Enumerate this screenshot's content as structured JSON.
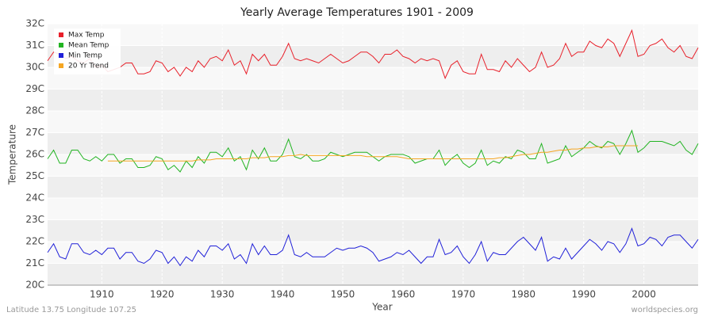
{
  "chart_data": {
    "type": "line",
    "title": "Yearly Average Temperatures 1901 - 2009",
    "x_label": "Year",
    "y_label": "Temperature",
    "annotations": [
      "Latitude 13.75 Longitude 107.25",
      "worldspecies.org"
    ],
    "grid": true,
    "legend": "top-left",
    "xlim": [
      1901,
      2009
    ],
    "xticks": [
      1910,
      1920,
      1930,
      1940,
      1950,
      1960,
      1970,
      1980,
      1990,
      2000
    ],
    "ylim": [
      20,
      32
    ],
    "yticks": [
      {
        "value": 20,
        "label": "20C"
      },
      {
        "value": 21,
        "label": "21C"
      },
      {
        "value": 22,
        "label": "22C"
      },
      {
        "value": 23,
        "label": "23C"
      },
      {
        "value": 24,
        "label": "24C"
      },
      {
        "value": 25,
        "label": "25C"
      },
      {
        "value": 26,
        "label": "26C"
      },
      {
        "value": 27,
        "label": "27C"
      },
      {
        "value": 28,
        "label": "28C"
      },
      {
        "value": 29,
        "label": "29C"
      },
      {
        "value": 30,
        "label": "30C"
      },
      {
        "value": 31,
        "label": "31C"
      },
      {
        "value": 32,
        "label": "32C"
      }
    ],
    "x": [
      1901,
      1902,
      1903,
      1904,
      1905,
      1906,
      1907,
      1908,
      1909,
      1910,
      1911,
      1912,
      1913,
      1914,
      1915,
      1916,
      1917,
      1918,
      1919,
      1920,
      1921,
      1922,
      1923,
      1924,
      1925,
      1926,
      1927,
      1928,
      1929,
      1930,
      1931,
      1932,
      1933,
      1934,
      1935,
      1936,
      1937,
      1938,
      1939,
      1940,
      1941,
      1942,
      1943,
      1944,
      1945,
      1946,
      1947,
      1948,
      1949,
      1950,
      1951,
      1952,
      1953,
      1954,
      1955,
      1956,
      1957,
      1958,
      1959,
      1960,
      1961,
      1962,
      1963,
      1964,
      1965,
      1966,
      1967,
      1968,
      1969,
      1970,
      1971,
      1972,
      1973,
      1974,
      1975,
      1976,
      1977,
      1978,
      1979,
      1980,
      1981,
      1982,
      1983,
      1984,
      1985,
      1986,
      1987,
      1988,
      1989,
      1990,
      1991,
      1992,
      1993,
      1994,
      1995,
      1996,
      1997,
      1998,
      1999,
      2000,
      2001,
      2002,
      2003,
      2004,
      2005,
      2006,
      2007,
      2008,
      2009
    ],
    "series": [
      {
        "name": "Max Temp",
        "color": "#e8202a",
        "values": [
          30.3,
          30.7,
          30.6,
          30.4,
          30.5,
          30.3,
          30.2,
          30.4,
          30.0,
          30.1,
          29.8,
          29.9,
          30.0,
          30.2,
          30.2,
          29.7,
          29.7,
          29.8,
          30.3,
          30.2,
          29.8,
          30.0,
          29.6,
          30.0,
          29.8,
          30.3,
          30.0,
          30.4,
          30.5,
          30.3,
          30.8,
          30.1,
          30.3,
          29.7,
          30.6,
          30.3,
          30.6,
          30.1,
          30.1,
          30.5,
          31.1,
          30.4,
          30.3,
          30.4,
          30.3,
          30.2,
          30.4,
          30.6,
          30.4,
          30.2,
          30.3,
          30.5,
          30.7,
          30.7,
          30.5,
          30.2,
          30.6,
          30.6,
          30.8,
          30.5,
          30.4,
          30.2,
          30.4,
          30.3,
          30.4,
          30.3,
          29.5,
          30.1,
          30.3,
          29.8,
          29.7,
          29.7,
          30.6,
          29.9,
          29.9,
          29.8,
          30.3,
          30.0,
          30.4,
          30.1,
          29.8,
          30.0,
          30.7,
          30.0,
          30.1,
          30.4,
          31.1,
          30.5,
          30.7,
          30.7,
          31.2,
          31.0,
          30.9,
          31.3,
          31.1,
          30.5,
          31.1,
          31.7,
          30.5,
          30.6,
          31.0,
          31.1,
          31.3,
          30.9,
          30.7,
          31.0,
          30.5,
          30.4,
          30.9
        ]
      },
      {
        "name": "Mean Temp",
        "color": "#22b422",
        "values": [
          25.8,
          26.2,
          25.6,
          25.6,
          26.2,
          26.2,
          25.8,
          25.7,
          25.9,
          25.7,
          26.0,
          26.0,
          25.6,
          25.8,
          25.8,
          25.4,
          25.4,
          25.5,
          25.9,
          25.8,
          25.3,
          25.5,
          25.2,
          25.7,
          25.4,
          25.9,
          25.6,
          26.1,
          26.1,
          25.9,
          26.3,
          25.7,
          25.9,
          25.3,
          26.2,
          25.8,
          26.3,
          25.7,
          25.7,
          26.0,
          26.7,
          25.9,
          25.8,
          26.0,
          25.7,
          25.7,
          25.8,
          26.1,
          26.0,
          25.9,
          26.0,
          26.1,
          26.1,
          26.1,
          25.9,
          25.7,
          25.9,
          26.0,
          26.0,
          26.0,
          25.9,
          25.6,
          25.7,
          25.8,
          25.8,
          26.2,
          25.5,
          25.8,
          26.0,
          25.6,
          25.4,
          25.6,
          26.2,
          25.5,
          25.7,
          25.6,
          25.9,
          25.8,
          26.2,
          26.1,
          25.8,
          25.8,
          26.5,
          25.6,
          25.7,
          25.8,
          26.4,
          25.9,
          26.1,
          26.3,
          26.6,
          26.4,
          26.3,
          26.6,
          26.5,
          26.0,
          26.5,
          27.1,
          26.1,
          26.3,
          26.6,
          26.6,
          26.6,
          26.5,
          26.4,
          26.6,
          26.2,
          26.0,
          26.5
        ]
      },
      {
        "name": "Min Temp",
        "color": "#2020d8",
        "values": [
          21.5,
          21.9,
          21.3,
          21.2,
          21.9,
          21.9,
          21.5,
          21.4,
          21.6,
          21.4,
          21.7,
          21.7,
          21.2,
          21.5,
          21.5,
          21.1,
          21.0,
          21.2,
          21.6,
          21.5,
          21.0,
          21.3,
          20.9,
          21.3,
          21.1,
          21.6,
          21.3,
          21.8,
          21.8,
          21.6,
          21.9,
          21.2,
          21.4,
          21.0,
          21.9,
          21.4,
          21.8,
          21.4,
          21.4,
          21.6,
          22.3,
          21.4,
          21.3,
          21.5,
          21.3,
          21.3,
          21.3,
          21.5,
          21.7,
          21.6,
          21.7,
          21.7,
          21.8,
          21.7,
          21.5,
          21.1,
          21.2,
          21.3,
          21.5,
          21.4,
          21.6,
          21.3,
          21.0,
          21.3,
          21.3,
          22.1,
          21.4,
          21.5,
          21.8,
          21.3,
          21.0,
          21.4,
          22.0,
          21.1,
          21.5,
          21.4,
          21.4,
          21.7,
          22.0,
          22.2,
          21.9,
          21.6,
          22.2,
          21.1,
          21.3,
          21.2,
          21.7,
          21.2,
          21.5,
          21.8,
          22.1,
          21.9,
          21.6,
          22.0,
          21.9,
          21.5,
          21.9,
          22.6,
          21.8,
          21.9,
          22.2,
          22.1,
          21.8,
          22.2,
          22.3,
          22.3,
          22.0,
          21.7,
          22.1
        ]
      },
      {
        "name": "20 Yr Trend",
        "color": "#f5a623",
        "values": [
          null,
          null,
          null,
          null,
          null,
          null,
          null,
          null,
          null,
          null,
          25.7,
          25.7,
          25.7,
          25.7,
          25.7,
          25.7,
          25.7,
          25.7,
          25.7,
          25.7,
          25.7,
          25.7,
          25.7,
          25.7,
          25.7,
          25.75,
          25.75,
          25.75,
          25.8,
          25.8,
          25.8,
          25.8,
          25.8,
          25.8,
          25.85,
          25.85,
          25.85,
          25.9,
          25.9,
          25.9,
          25.95,
          25.95,
          26.0,
          25.95,
          25.95,
          25.95,
          25.95,
          25.95,
          25.95,
          25.95,
          25.95,
          25.95,
          25.95,
          25.9,
          25.9,
          25.9,
          25.9,
          25.9,
          25.9,
          25.85,
          25.8,
          25.8,
          25.8,
          25.8,
          25.8,
          25.8,
          25.8,
          25.8,
          25.8,
          25.8,
          25.8,
          25.8,
          25.8,
          25.8,
          25.8,
          25.85,
          25.85,
          25.9,
          25.95,
          26.0,
          26.0,
          26.05,
          26.1,
          26.1,
          26.15,
          26.2,
          26.2,
          26.25,
          26.25,
          26.3,
          26.3,
          26.35,
          26.35,
          26.35,
          26.4,
          26.4,
          26.4,
          26.4,
          26.4,
          null,
          null,
          null,
          null,
          null,
          null,
          null,
          null,
          null,
          null
        ]
      }
    ]
  }
}
